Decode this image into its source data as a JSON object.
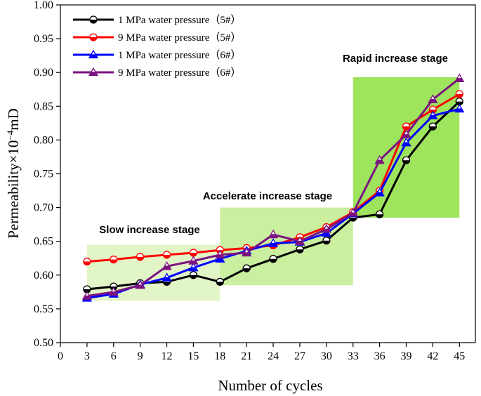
{
  "chart_data": {
    "type": "line",
    "xlabel": "Number of cycles",
    "ylabel": "Permeability×10",
    "ylabel_exponent": "−4",
    "ylabel_unit": "mD",
    "xlim": [
      0,
      46.8
    ],
    "ylim": [
      0.5,
      1.0
    ],
    "x_ticks": [
      0,
      3,
      6,
      9,
      12,
      15,
      18,
      21,
      24,
      27,
      30,
      33,
      36,
      39,
      42,
      45
    ],
    "y_ticks": [
      0.5,
      0.55,
      0.6,
      0.65,
      0.7,
      0.75,
      0.8,
      0.85,
      0.9,
      0.95,
      1.0
    ],
    "y_tick_labels": [
      "0.50",
      "0.55",
      "0.60",
      "0.65",
      "0.70",
      "0.75",
      "0.80",
      "0.85",
      "0.90",
      "0.95",
      "1.00"
    ],
    "x": [
      3,
      6,
      9,
      12,
      15,
      18,
      21,
      24,
      27,
      30,
      33,
      36,
      39,
      42,
      45
    ],
    "series": [
      {
        "name": "1 MPa water pressure（5#）",
        "color": "#000000",
        "marker": "circle",
        "values": [
          0.579,
          0.583,
          0.588,
          0.59,
          0.6,
          0.59,
          0.61,
          0.624,
          0.638,
          0.651,
          0.685,
          0.69,
          0.77,
          0.82,
          0.857
        ]
      },
      {
        "name": "9 MPa water pressure（5#）",
        "color": "#ff0000",
        "marker": "circle",
        "values": [
          0.62,
          0.623,
          0.627,
          0.63,
          0.633,
          0.637,
          0.64,
          0.644,
          0.656,
          0.671,
          0.693,
          0.725,
          0.82,
          0.845,
          0.868
        ]
      },
      {
        "name": "1 MPa water pressure（6#）",
        "color": "#0000ff",
        "marker": "triangle",
        "values": [
          0.566,
          0.572,
          0.586,
          0.596,
          0.611,
          0.624,
          0.636,
          0.647,
          0.649,
          0.662,
          0.691,
          0.722,
          0.796,
          0.836,
          0.846
        ]
      },
      {
        "name": "9 MPa water pressure（6#）",
        "color": "#7b1280",
        "marker": "triangle",
        "values": [
          0.569,
          0.575,
          0.585,
          0.613,
          0.621,
          0.63,
          0.633,
          0.66,
          0.65,
          0.668,
          0.692,
          0.77,
          0.808,
          0.86,
          0.891
        ]
      }
    ],
    "stages": [
      {
        "label": "Slow increase stage",
        "x_start": 3,
        "x_end": 18,
        "y_low": 0.562,
        "y_high": 0.645,
        "color": "#e2f5c7"
      },
      {
        "label": "Accelerate increase stage",
        "x_start": 18,
        "x_end": 33,
        "y_low": 0.585,
        "y_high": 0.7,
        "color": "#c9ef9f"
      },
      {
        "label": "Rapid increase stage",
        "x_start": 33,
        "x_end": 45,
        "y_low": 0.685,
        "y_high": 0.893,
        "color": "#9ee45d"
      }
    ],
    "legend_position": "top-left"
  }
}
